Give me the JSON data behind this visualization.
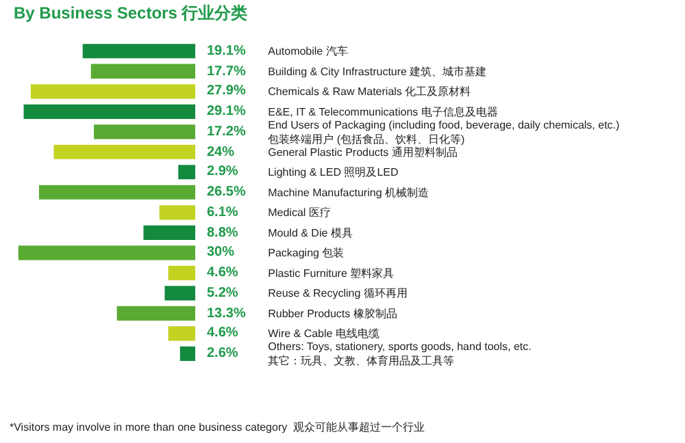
{
  "chart_data": {
    "type": "bar",
    "orientation": "horizontal",
    "title": "By Business Sectors 行业分类",
    "categories": [
      "Automobile 汽车",
      "Building & City Infrastructure 建筑、城市基建",
      "Chemicals & Raw Materials 化工及原材料",
      "E&E, IT & Telecommunications 电子信息及电器",
      "End Users of Packaging (including food, beverage, daily chemicals, etc.)\n包装终端用户 (包括食品、饮料、日化等)",
      "General Plastic Products 通用塑料制品",
      "Lighting & LED 照明及LED",
      "Machine Manufacturing 机械制造",
      "Medical 医疗",
      "Mould & Die 模具",
      "Packaging 包装",
      "Plastic Furniture 塑料家具",
      "Reuse & Recycling 循环再用",
      "Rubber Products 橡胶制品",
      "Wire & Cable 电线电缆",
      "Others: Toys, stationery, sports goods, hand tools, etc.\n其它：玩具、文教、体育用品及工具等"
    ],
    "values": [
      19.1,
      17.7,
      27.9,
      29.1,
      17.2,
      24,
      2.9,
      26.5,
      6.1,
      8.8,
      30,
      4.6,
      5.2,
      13.3,
      4.6,
      2.6
    ],
    "value_labels": [
      "19.1%",
      "17.7%",
      "27.9%",
      "29.1%",
      "17.2%",
      "24%",
      "2.9%",
      "26.5%",
      "6.1%",
      "8.8%",
      "30%",
      "4.6%",
      "5.2%",
      "13.3%",
      "4.6%",
      "2.6%"
    ],
    "colors": [
      "#138a3e",
      "#5aab33",
      "#c3d321",
      "#138a3e",
      "#5aab33",
      "#c3d321",
      "#138a3e",
      "#5aab33",
      "#c3d321",
      "#138a3e",
      "#5aab33",
      "#c3d321",
      "#138a3e",
      "#5aab33",
      "#c3d321",
      "#138a3e"
    ],
    "xlim": [
      30.8,
      0
    ],
    "annotations": [
      "*Visitors may involve in more than one business category  观众可能从事超过一个行业"
    ]
  }
}
